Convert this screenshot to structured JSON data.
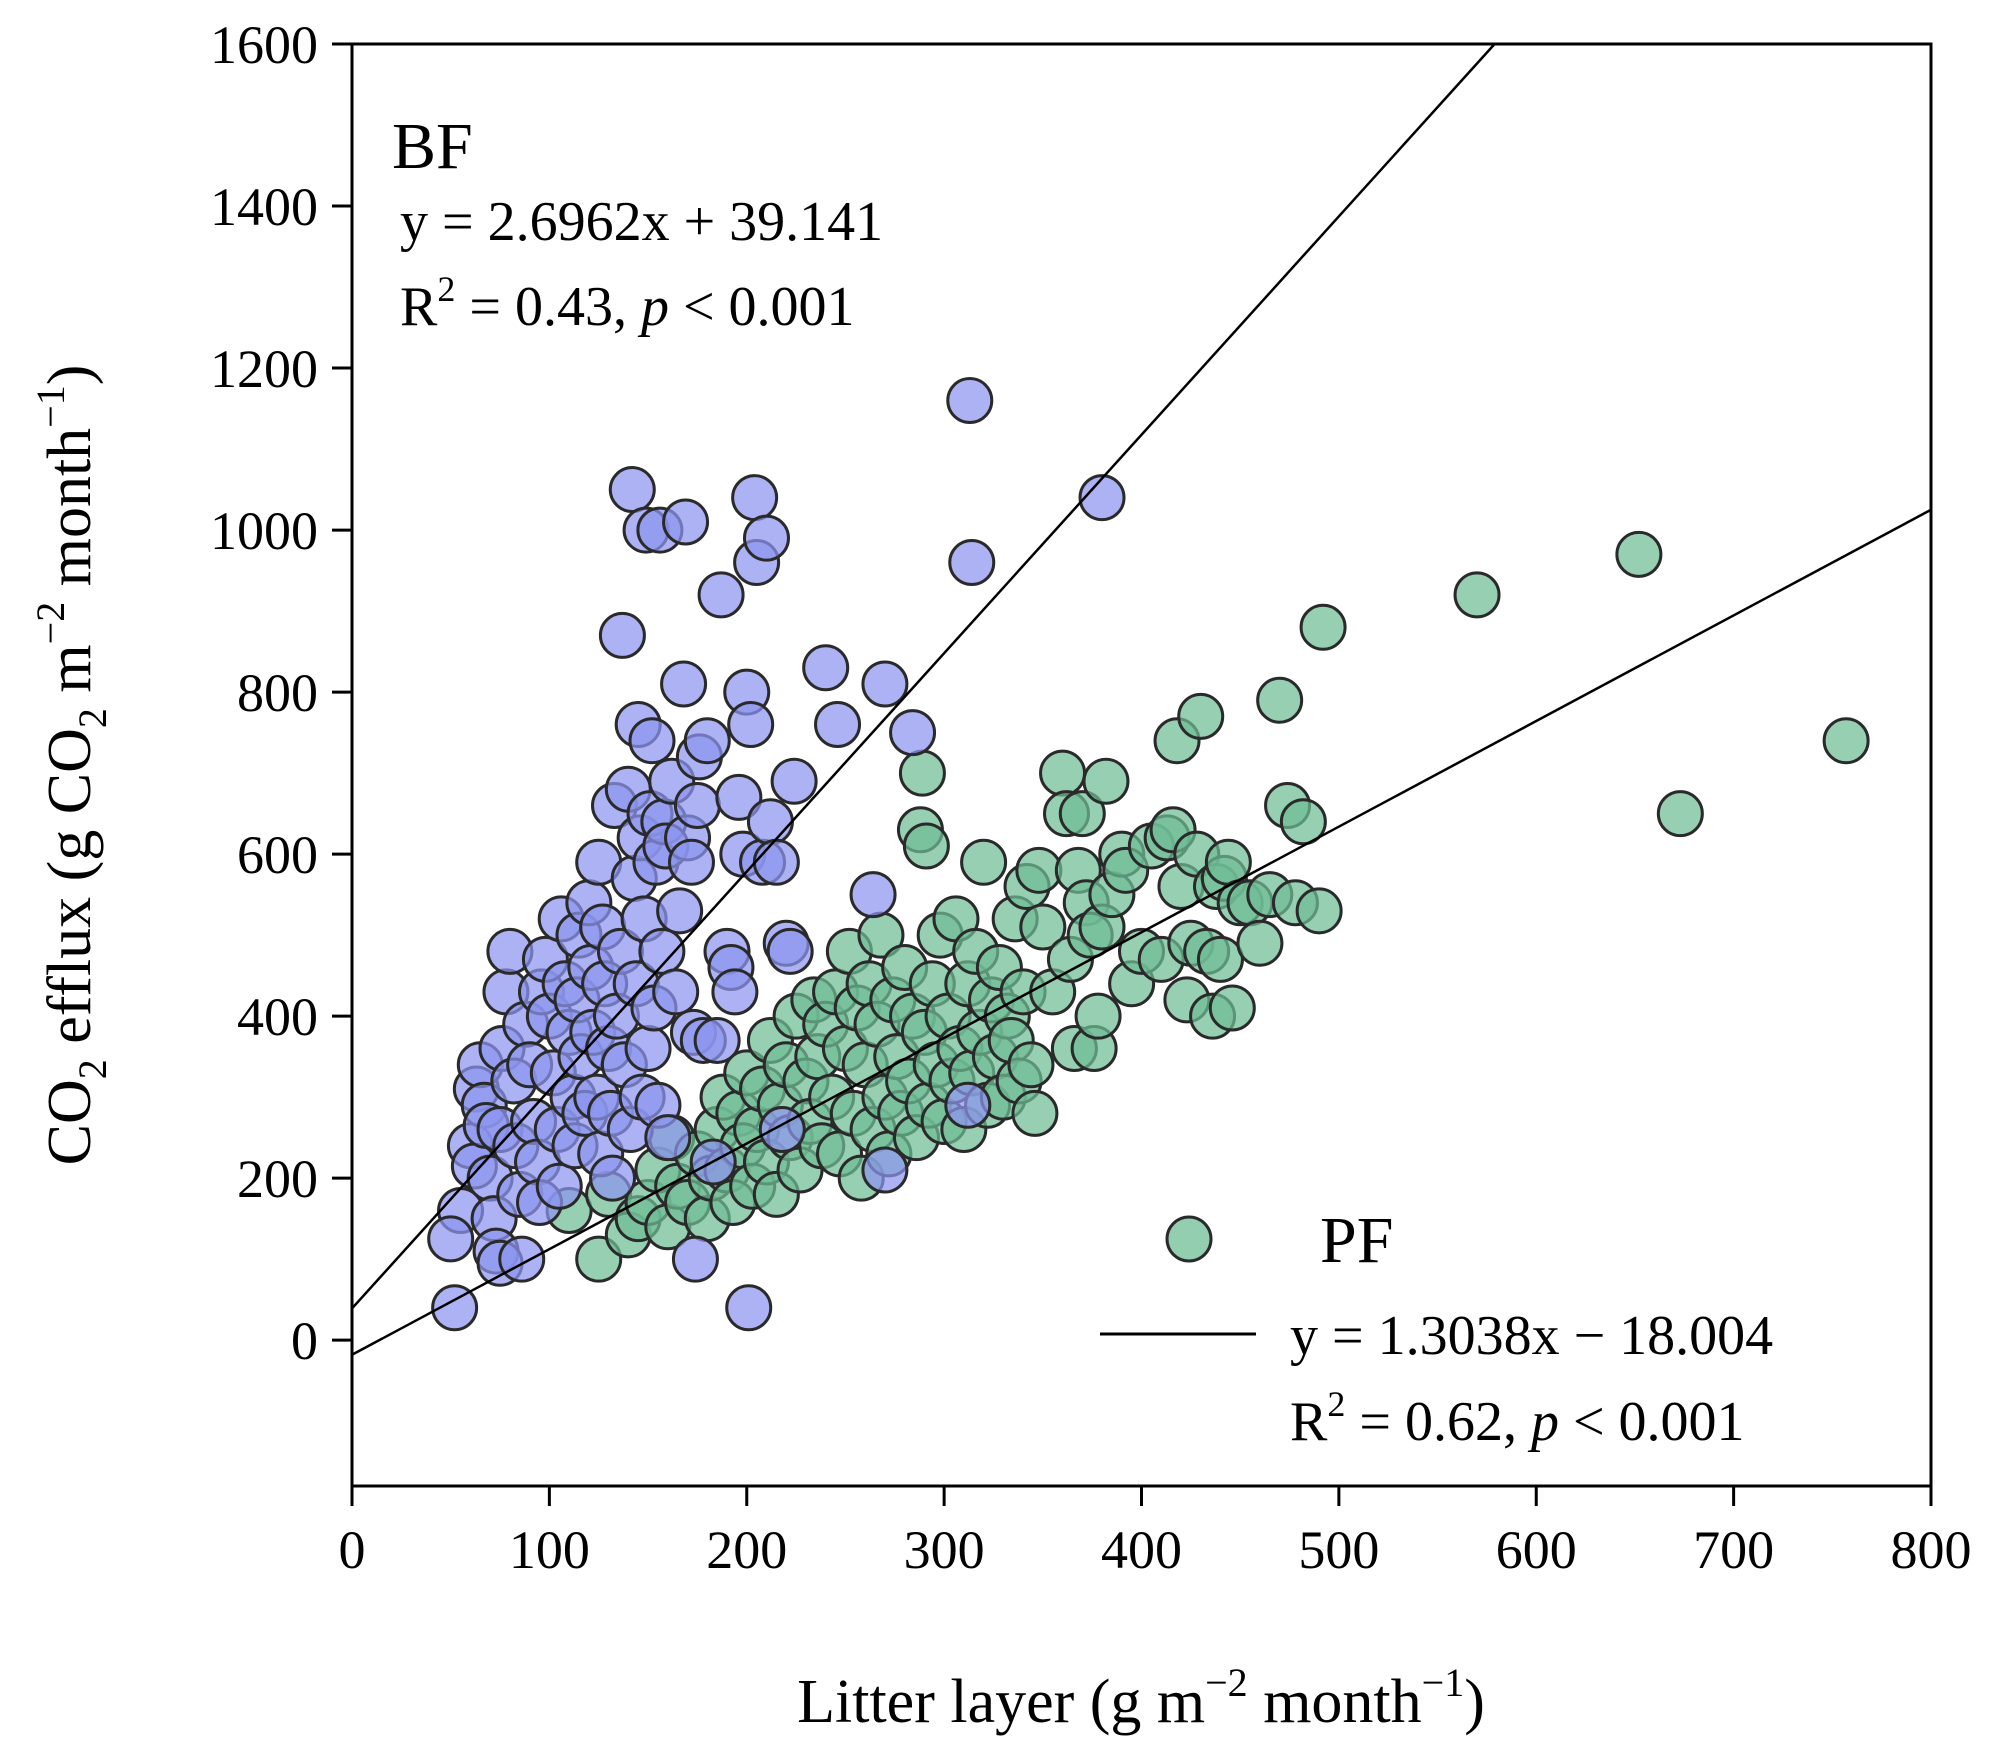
{
  "chart_data": {
    "type": "scatter",
    "xlim": [
      0,
      800
    ],
    "ylim": [
      -180,
      1600
    ],
    "xticks": [
      "0",
      "100",
      "200",
      "300",
      "400",
      "500",
      "600",
      "700",
      "800"
    ],
    "yticks": [
      "0",
      "200",
      "400",
      "600",
      "800",
      "1000",
      "1200",
      "1400",
      "1600"
    ],
    "xlabel": {
      "main": "Litter layer (g m",
      "sup1": "−2",
      "mid": " month",
      "sup2": "−1",
      "end": ")"
    },
    "ylabel": {
      "co": "CO",
      "sub1": "2",
      "mid": " efflux (g CO",
      "sub2": "2",
      "mid2": " m",
      "sup1": "−2",
      "mid3": " month",
      "sup2": "−1",
      "end": ")"
    },
    "series": [
      {
        "name": "BF",
        "color": "#8c94ee",
        "fit": {
          "slope": 2.6962,
          "intercept": 39.141
        },
        "equation": "y = 2.6962x + 39.141",
        "r2": {
          "prefix": "R",
          "sup": "2",
          "text": " = 0.43, ",
          "p": "p",
          "rest": " < 0.001"
        },
        "points": [
          [
            52,
            40
          ],
          [
            55,
            160
          ],
          [
            50,
            125
          ],
          [
            60,
            240
          ],
          [
            62,
            215
          ],
          [
            63,
            310
          ],
          [
            65,
            340
          ],
          [
            67,
            290
          ],
          [
            68,
            265
          ],
          [
            70,
            200
          ],
          [
            72,
            150
          ],
          [
            73,
            110
          ],
          [
            75,
            95
          ],
          [
            75,
            260
          ],
          [
            76,
            360
          ],
          [
            78,
            430
          ],
          [
            80,
            480
          ],
          [
            82,
            320
          ],
          [
            83,
            240
          ],
          [
            85,
            180
          ],
          [
            86,
            100
          ],
          [
            88,
            390
          ],
          [
            90,
            340
          ],
          [
            92,
            270
          ],
          [
            94,
            220
          ],
          [
            95,
            170
          ],
          [
            96,
            430
          ],
          [
            98,
            470
          ],
          [
            100,
            400
          ],
          [
            102,
            330
          ],
          [
            104,
            260
          ],
          [
            105,
            190
          ],
          [
            106,
            520
          ],
          [
            108,
            440
          ],
          [
            110,
            380
          ],
          [
            112,
            300
          ],
          [
            113,
            240
          ],
          [
            114,
            420
          ],
          [
            115,
            500
          ],
          [
            116,
            350
          ],
          [
            118,
            280
          ],
          [
            120,
            540
          ],
          [
            121,
            460
          ],
          [
            122,
            380
          ],
          [
            124,
            300
          ],
          [
            125,
            590
          ],
          [
            126,
            230
          ],
          [
            127,
            510
          ],
          [
            128,
            440
          ],
          [
            130,
            360
          ],
          [
            131,
            280
          ],
          [
            132,
            200
          ],
          [
            133,
            660
          ],
          [
            134,
            400
          ],
          [
            136,
            480
          ],
          [
            137,
            870
          ],
          [
            138,
            340
          ],
          [
            140,
            680
          ],
          [
            141,
            260
          ],
          [
            142,
            1050
          ],
          [
            143,
            570
          ],
          [
            144,
            440
          ],
          [
            145,
            760
          ],
          [
            146,
            620
          ],
          [
            147,
            300
          ],
          [
            148,
            520
          ],
          [
            149,
            1000
          ],
          [
            150,
            360
          ],
          [
            151,
            650
          ],
          [
            152,
            740
          ],
          [
            153,
            410
          ],
          [
            154,
            590
          ],
          [
            155,
            290
          ],
          [
            156,
            1000
          ],
          [
            157,
            480
          ],
          [
            158,
            640
          ],
          [
            159,
            610
          ],
          [
            160,
            250
          ],
          [
            162,
            690
          ],
          [
            164,
            430
          ],
          [
            166,
            530
          ],
          [
            168,
            810
          ],
          [
            169,
            1010
          ],
          [
            170,
            620
          ],
          [
            172,
            590
          ],
          [
            173,
            380
          ],
          [
            174,
            100
          ],
          [
            175,
            660
          ],
          [
            176,
            720
          ],
          [
            178,
            370
          ],
          [
            180,
            740
          ],
          [
            183,
            220
          ],
          [
            185,
            370
          ],
          [
            187,
            920
          ],
          [
            190,
            480
          ],
          [
            192,
            460
          ],
          [
            194,
            430
          ],
          [
            196,
            670
          ],
          [
            198,
            600
          ],
          [
            200,
            800
          ],
          [
            201,
            40
          ],
          [
            202,
            760
          ],
          [
            204,
            1040
          ],
          [
            205,
            960
          ],
          [
            208,
            590
          ],
          [
            210,
            990
          ],
          [
            212,
            640
          ],
          [
            215,
            590
          ],
          [
            218,
            260
          ],
          [
            220,
            490
          ],
          [
            222,
            480
          ],
          [
            224,
            690
          ],
          [
            240,
            830
          ],
          [
            246,
            760
          ],
          [
            264,
            550
          ],
          [
            270,
            210
          ],
          [
            270,
            810
          ],
          [
            284,
            750
          ],
          [
            312,
            290
          ],
          [
            313,
            1160
          ],
          [
            314,
            960
          ],
          [
            380,
            1040
          ]
        ]
      },
      {
        "name": "PF",
        "color": "#6fbd95",
        "fit": {
          "slope": 1.3038,
          "intercept": -18.004
        },
        "legend_label": "PF",
        "equation": "y = 1.3038x − 18.004",
        "r2": {
          "prefix": "R",
          "sup": "2",
          "text": " = 0.62, ",
          "p": "p",
          "rest": " < 0.001"
        },
        "points": [
          [
            110,
            160
          ],
          [
            125,
            100
          ],
          [
            130,
            180
          ],
          [
            140,
            130
          ],
          [
            145,
            150
          ],
          [
            150,
            170
          ],
          [
            155,
            210
          ],
          [
            160,
            140
          ],
          [
            162,
            250
          ],
          [
            165,
            190
          ],
          [
            170,
            170
          ],
          [
            175,
            230
          ],
          [
            180,
            150
          ],
          [
            182,
            200
          ],
          [
            185,
            260
          ],
          [
            188,
            300
          ],
          [
            190,
            210
          ],
          [
            193,
            170
          ],
          [
            196,
            280
          ],
          [
            198,
            240
          ],
          [
            200,
            330
          ],
          [
            203,
            190
          ],
          [
            205,
            260
          ],
          [
            208,
            310
          ],
          [
            210,
            220
          ],
          [
            212,
            370
          ],
          [
            215,
            180
          ],
          [
            217,
            290
          ],
          [
            220,
            340
          ],
          [
            222,
            250
          ],
          [
            225,
            400
          ],
          [
            227,
            210
          ],
          [
            230,
            320
          ],
          [
            232,
            270
          ],
          [
            234,
            420
          ],
          [
            236,
            350
          ],
          [
            238,
            240
          ],
          [
            240,
            390
          ],
          [
            243,
            300
          ],
          [
            245,
            430
          ],
          [
            247,
            230
          ],
          [
            250,
            360
          ],
          [
            252,
            480
          ],
          [
            254,
            280
          ],
          [
            256,
            410
          ],
          [
            258,
            200
          ],
          [
            260,
            340
          ],
          [
            262,
            440
          ],
          [
            264,
            260
          ],
          [
            266,
            390
          ],
          [
            268,
            500
          ],
          [
            270,
            300
          ],
          [
            272,
            230
          ],
          [
            274,
            420
          ],
          [
            276,
            350
          ],
          [
            278,
            280
          ],
          [
            280,
            460
          ],
          [
            282,
            320
          ],
          [
            284,
            400
          ],
          [
            286,
            250
          ],
          [
            288,
            630
          ],
          [
            289,
            700
          ],
          [
            290,
            380
          ],
          [
            291,
            610
          ],
          [
            292,
            290
          ],
          [
            294,
            440
          ],
          [
            296,
            340
          ],
          [
            298,
            500
          ],
          [
            300,
            270
          ],
          [
            302,
            400
          ],
          [
            304,
            320
          ],
          [
            306,
            520
          ],
          [
            308,
            360
          ],
          [
            310,
            260
          ],
          [
            312,
            440
          ],
          [
            314,
            330
          ],
          [
            316,
            480
          ],
          [
            318,
            380
          ],
          [
            320,
            590
          ],
          [
            322,
            290
          ],
          [
            324,
            420
          ],
          [
            326,
            350
          ],
          [
            328,
            460
          ],
          [
            330,
            300
          ],
          [
            332,
            400
          ],
          [
            334,
            370
          ],
          [
            336,
            520
          ],
          [
            338,
            320
          ],
          [
            340,
            430
          ],
          [
            342,
            560
          ],
          [
            344,
            340
          ],
          [
            346,
            280
          ],
          [
            348,
            580
          ],
          [
            350,
            510
          ],
          [
            355,
            430
          ],
          [
            360,
            700
          ],
          [
            362,
            650
          ],
          [
            364,
            470
          ],
          [
            366,
            360
          ],
          [
            368,
            580
          ],
          [
            370,
            650
          ],
          [
            372,
            540
          ],
          [
            374,
            500
          ],
          [
            376,
            360
          ],
          [
            378,
            400
          ],
          [
            380,
            510
          ],
          [
            382,
            690
          ],
          [
            385,
            550
          ],
          [
            390,
            600
          ],
          [
            392,
            580
          ],
          [
            395,
            440
          ],
          [
            400,
            480
          ],
          [
            405,
            610
          ],
          [
            410,
            470
          ],
          [
            413,
            620
          ],
          [
            416,
            630
          ],
          [
            418,
            740
          ],
          [
            420,
            560
          ],
          [
            423,
            420
          ],
          [
            425,
            490
          ],
          [
            428,
            600
          ],
          [
            430,
            770
          ],
          [
            433,
            480
          ],
          [
            436,
            400
          ],
          [
            438,
            560
          ],
          [
            440,
            470
          ],
          [
            442,
            570
          ],
          [
            444,
            590
          ],
          [
            446,
            410
          ],
          [
            450,
            540
          ],
          [
            455,
            540
          ],
          [
            460,
            490
          ],
          [
            465,
            550
          ],
          [
            470,
            790
          ],
          [
            474,
            660
          ],
          [
            478,
            540
          ],
          [
            482,
            640
          ],
          [
            490,
            530
          ],
          [
            492,
            880
          ],
          [
            570,
            920
          ],
          [
            652,
            970
          ],
          [
            673,
            650
          ],
          [
            757,
            740
          ]
        ]
      }
    ]
  }
}
